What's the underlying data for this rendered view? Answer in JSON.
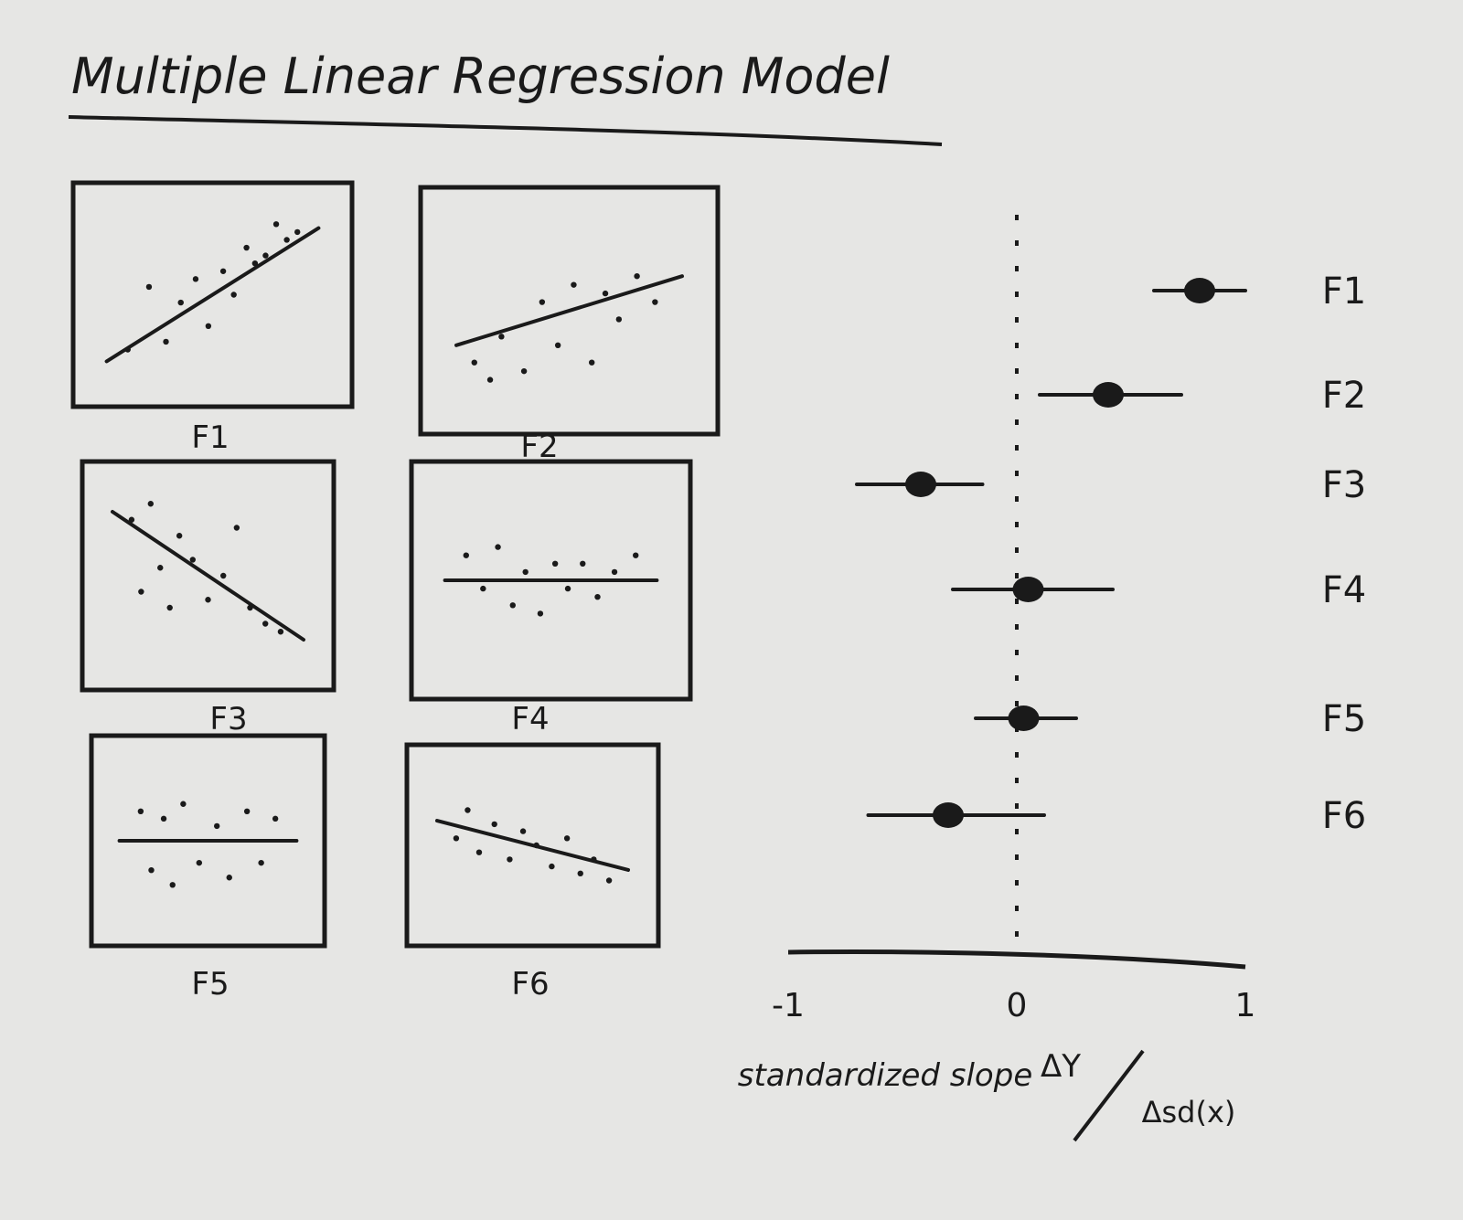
{
  "title": "Multiple Linear Regression Model",
  "ink_color": "#1a1a1a",
  "paper_color": "#e6e6e4",
  "chart_data": [
    {
      "type": "scatter",
      "title": "F1",
      "trend": "positive",
      "slope": 0.85,
      "x": [
        0.1,
        0.2,
        0.28,
        0.35,
        0.42,
        0.48,
        0.55,
        0.6,
        0.66,
        0.7,
        0.75,
        0.8,
        0.85,
        0.9
      ],
      "y": [
        0.15,
        0.55,
        0.2,
        0.45,
        0.6,
        0.3,
        0.65,
        0.5,
        0.8,
        0.7,
        0.75,
        0.95,
        0.85,
        0.9
      ]
    },
    {
      "type": "scatter",
      "title": "F2",
      "trend": "positive",
      "slope": 0.4,
      "x": [
        0.08,
        0.15,
        0.2,
        0.3,
        0.38,
        0.45,
        0.52,
        0.6,
        0.66,
        0.72,
        0.8,
        0.88
      ],
      "y": [
        0.2,
        0.1,
        0.35,
        0.15,
        0.55,
        0.3,
        0.65,
        0.2,
        0.6,
        0.45,
        0.7,
        0.55
      ]
    },
    {
      "type": "scatter",
      "title": "F3",
      "trend": "negative",
      "slope": -0.8,
      "x": [
        0.1,
        0.15,
        0.2,
        0.25,
        0.3,
        0.35,
        0.42,
        0.5,
        0.58,
        0.65,
        0.72,
        0.8,
        0.88
      ],
      "y": [
        0.85,
        0.4,
        0.95,
        0.55,
        0.3,
        0.75,
        0.6,
        0.35,
        0.5,
        0.8,
        0.3,
        0.2,
        0.15
      ]
    },
    {
      "type": "scatter",
      "title": "F4",
      "trend": "flat",
      "slope": 0.0,
      "x": [
        0.1,
        0.18,
        0.25,
        0.32,
        0.38,
        0.45,
        0.52,
        0.58,
        0.65,
        0.72,
        0.8,
        0.9
      ],
      "y": [
        0.65,
        0.45,
        0.7,
        0.35,
        0.55,
        0.3,
        0.6,
        0.45,
        0.6,
        0.4,
        0.55,
        0.65
      ]
    },
    {
      "type": "scatter",
      "title": "F5",
      "trend": "flat",
      "slope": 0.0,
      "x": [
        0.12,
        0.18,
        0.25,
        0.3,
        0.36,
        0.45,
        0.55,
        0.62,
        0.72,
        0.8,
        0.88
      ],
      "y": [
        0.7,
        0.3,
        0.65,
        0.2,
        0.75,
        0.35,
        0.6,
        0.25,
        0.7,
        0.35,
        0.65
      ]
    },
    {
      "type": "scatter",
      "title": "F6",
      "trend": "negative",
      "slope": -0.35,
      "x": [
        0.1,
        0.16,
        0.22,
        0.3,
        0.38,
        0.45,
        0.52,
        0.6,
        0.68,
        0.75,
        0.82,
        0.9
      ],
      "y": [
        0.55,
        0.75,
        0.45,
        0.65,
        0.4,
        0.6,
        0.5,
        0.35,
        0.55,
        0.3,
        0.4,
        0.25
      ]
    },
    {
      "type": "forest",
      "title": "",
      "xlabel": "standardized slope",
      "xlabel_formula_num": "ΔY",
      "xlabel_formula_den": "Δsd(x)",
      "xlim": [
        -1,
        1
      ],
      "xticks": [
        -1,
        0,
        1
      ],
      "reference_line": 0,
      "points": [
        {
          "label": "F1",
          "estimate": 0.8,
          "low": 0.6,
          "high": 1.0
        },
        {
          "label": "F2",
          "estimate": 0.4,
          "low": 0.1,
          "high": 0.72
        },
        {
          "label": "F3",
          "estimate": -0.42,
          "low": -0.7,
          "high": -0.15
        },
        {
          "label": "F4",
          "estimate": 0.05,
          "low": -0.28,
          "high": 0.42
        },
        {
          "label": "F5",
          "estimate": 0.03,
          "low": -0.18,
          "high": 0.26
        },
        {
          "label": "F6",
          "estimate": -0.3,
          "low": -0.65,
          "high": 0.12
        }
      ]
    }
  ]
}
